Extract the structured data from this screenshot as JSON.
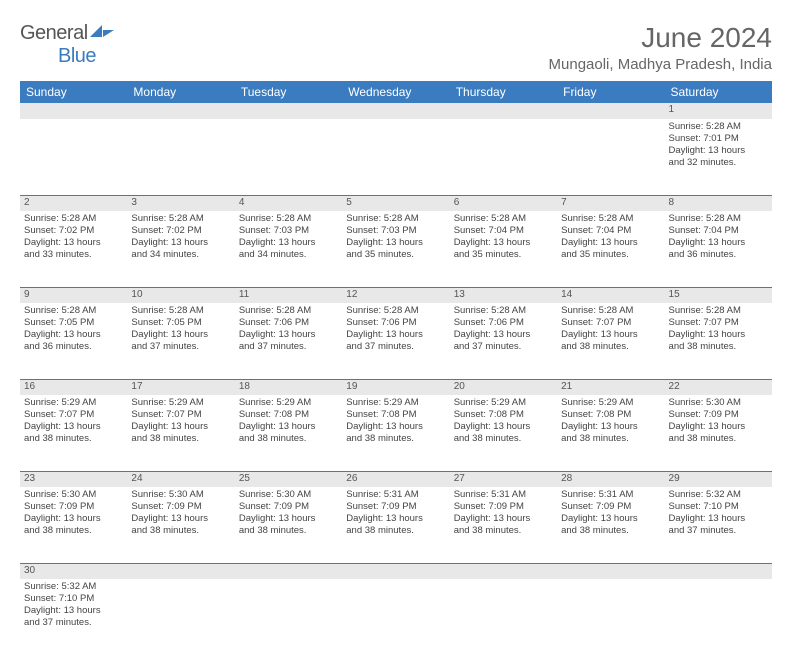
{
  "brand": {
    "name_a": "General",
    "name_b": "Blue"
  },
  "title": "June 2024",
  "location": "Mungaoli, Madhya Pradesh, India",
  "day_headers": [
    "Sunday",
    "Monday",
    "Tuesday",
    "Wednesday",
    "Thursday",
    "Friday",
    "Saturday"
  ],
  "colors": {
    "header_bg": "#3a7cbf",
    "header_fg": "#ffffff",
    "daynum_bg": "#e8e8e8",
    "cell_border": "#3a7cbf",
    "text": "#444444",
    "title": "#666666"
  },
  "weeks": [
    [
      null,
      null,
      null,
      null,
      null,
      null,
      {
        "n": "1",
        "sr": "Sunrise: 5:28 AM",
        "ss": "Sunset: 7:01 PM",
        "d1": "Daylight: 13 hours",
        "d2": "and 32 minutes."
      }
    ],
    [
      {
        "n": "2",
        "sr": "Sunrise: 5:28 AM",
        "ss": "Sunset: 7:02 PM",
        "d1": "Daylight: 13 hours",
        "d2": "and 33 minutes."
      },
      {
        "n": "3",
        "sr": "Sunrise: 5:28 AM",
        "ss": "Sunset: 7:02 PM",
        "d1": "Daylight: 13 hours",
        "d2": "and 34 minutes."
      },
      {
        "n": "4",
        "sr": "Sunrise: 5:28 AM",
        "ss": "Sunset: 7:03 PM",
        "d1": "Daylight: 13 hours",
        "d2": "and 34 minutes."
      },
      {
        "n": "5",
        "sr": "Sunrise: 5:28 AM",
        "ss": "Sunset: 7:03 PM",
        "d1": "Daylight: 13 hours",
        "d2": "and 35 minutes."
      },
      {
        "n": "6",
        "sr": "Sunrise: 5:28 AM",
        "ss": "Sunset: 7:04 PM",
        "d1": "Daylight: 13 hours",
        "d2": "and 35 minutes."
      },
      {
        "n": "7",
        "sr": "Sunrise: 5:28 AM",
        "ss": "Sunset: 7:04 PM",
        "d1": "Daylight: 13 hours",
        "d2": "and 35 minutes."
      },
      {
        "n": "8",
        "sr": "Sunrise: 5:28 AM",
        "ss": "Sunset: 7:04 PM",
        "d1": "Daylight: 13 hours",
        "d2": "and 36 minutes."
      }
    ],
    [
      {
        "n": "9",
        "sr": "Sunrise: 5:28 AM",
        "ss": "Sunset: 7:05 PM",
        "d1": "Daylight: 13 hours",
        "d2": "and 36 minutes."
      },
      {
        "n": "10",
        "sr": "Sunrise: 5:28 AM",
        "ss": "Sunset: 7:05 PM",
        "d1": "Daylight: 13 hours",
        "d2": "and 37 minutes."
      },
      {
        "n": "11",
        "sr": "Sunrise: 5:28 AM",
        "ss": "Sunset: 7:06 PM",
        "d1": "Daylight: 13 hours",
        "d2": "and 37 minutes."
      },
      {
        "n": "12",
        "sr": "Sunrise: 5:28 AM",
        "ss": "Sunset: 7:06 PM",
        "d1": "Daylight: 13 hours",
        "d2": "and 37 minutes."
      },
      {
        "n": "13",
        "sr": "Sunrise: 5:28 AM",
        "ss": "Sunset: 7:06 PM",
        "d1": "Daylight: 13 hours",
        "d2": "and 37 minutes."
      },
      {
        "n": "14",
        "sr": "Sunrise: 5:28 AM",
        "ss": "Sunset: 7:07 PM",
        "d1": "Daylight: 13 hours",
        "d2": "and 38 minutes."
      },
      {
        "n": "15",
        "sr": "Sunrise: 5:28 AM",
        "ss": "Sunset: 7:07 PM",
        "d1": "Daylight: 13 hours",
        "d2": "and 38 minutes."
      }
    ],
    [
      {
        "n": "16",
        "sr": "Sunrise: 5:29 AM",
        "ss": "Sunset: 7:07 PM",
        "d1": "Daylight: 13 hours",
        "d2": "and 38 minutes."
      },
      {
        "n": "17",
        "sr": "Sunrise: 5:29 AM",
        "ss": "Sunset: 7:07 PM",
        "d1": "Daylight: 13 hours",
        "d2": "and 38 minutes."
      },
      {
        "n": "18",
        "sr": "Sunrise: 5:29 AM",
        "ss": "Sunset: 7:08 PM",
        "d1": "Daylight: 13 hours",
        "d2": "and 38 minutes."
      },
      {
        "n": "19",
        "sr": "Sunrise: 5:29 AM",
        "ss": "Sunset: 7:08 PM",
        "d1": "Daylight: 13 hours",
        "d2": "and 38 minutes."
      },
      {
        "n": "20",
        "sr": "Sunrise: 5:29 AM",
        "ss": "Sunset: 7:08 PM",
        "d1": "Daylight: 13 hours",
        "d2": "and 38 minutes."
      },
      {
        "n": "21",
        "sr": "Sunrise: 5:29 AM",
        "ss": "Sunset: 7:08 PM",
        "d1": "Daylight: 13 hours",
        "d2": "and 38 minutes."
      },
      {
        "n": "22",
        "sr": "Sunrise: 5:30 AM",
        "ss": "Sunset: 7:09 PM",
        "d1": "Daylight: 13 hours",
        "d2": "and 38 minutes."
      }
    ],
    [
      {
        "n": "23",
        "sr": "Sunrise: 5:30 AM",
        "ss": "Sunset: 7:09 PM",
        "d1": "Daylight: 13 hours",
        "d2": "and 38 minutes."
      },
      {
        "n": "24",
        "sr": "Sunrise: 5:30 AM",
        "ss": "Sunset: 7:09 PM",
        "d1": "Daylight: 13 hours",
        "d2": "and 38 minutes."
      },
      {
        "n": "25",
        "sr": "Sunrise: 5:30 AM",
        "ss": "Sunset: 7:09 PM",
        "d1": "Daylight: 13 hours",
        "d2": "and 38 minutes."
      },
      {
        "n": "26",
        "sr": "Sunrise: 5:31 AM",
        "ss": "Sunset: 7:09 PM",
        "d1": "Daylight: 13 hours",
        "d2": "and 38 minutes."
      },
      {
        "n": "27",
        "sr": "Sunrise: 5:31 AM",
        "ss": "Sunset: 7:09 PM",
        "d1": "Daylight: 13 hours",
        "d2": "and 38 minutes."
      },
      {
        "n": "28",
        "sr": "Sunrise: 5:31 AM",
        "ss": "Sunset: 7:09 PM",
        "d1": "Daylight: 13 hours",
        "d2": "and 38 minutes."
      },
      {
        "n": "29",
        "sr": "Sunrise: 5:32 AM",
        "ss": "Sunset: 7:10 PM",
        "d1": "Daylight: 13 hours",
        "d2": "and 37 minutes."
      }
    ],
    [
      {
        "n": "30",
        "sr": "Sunrise: 5:32 AM",
        "ss": "Sunset: 7:10 PM",
        "d1": "Daylight: 13 hours",
        "d2": "and 37 minutes."
      },
      null,
      null,
      null,
      null,
      null,
      null
    ]
  ]
}
